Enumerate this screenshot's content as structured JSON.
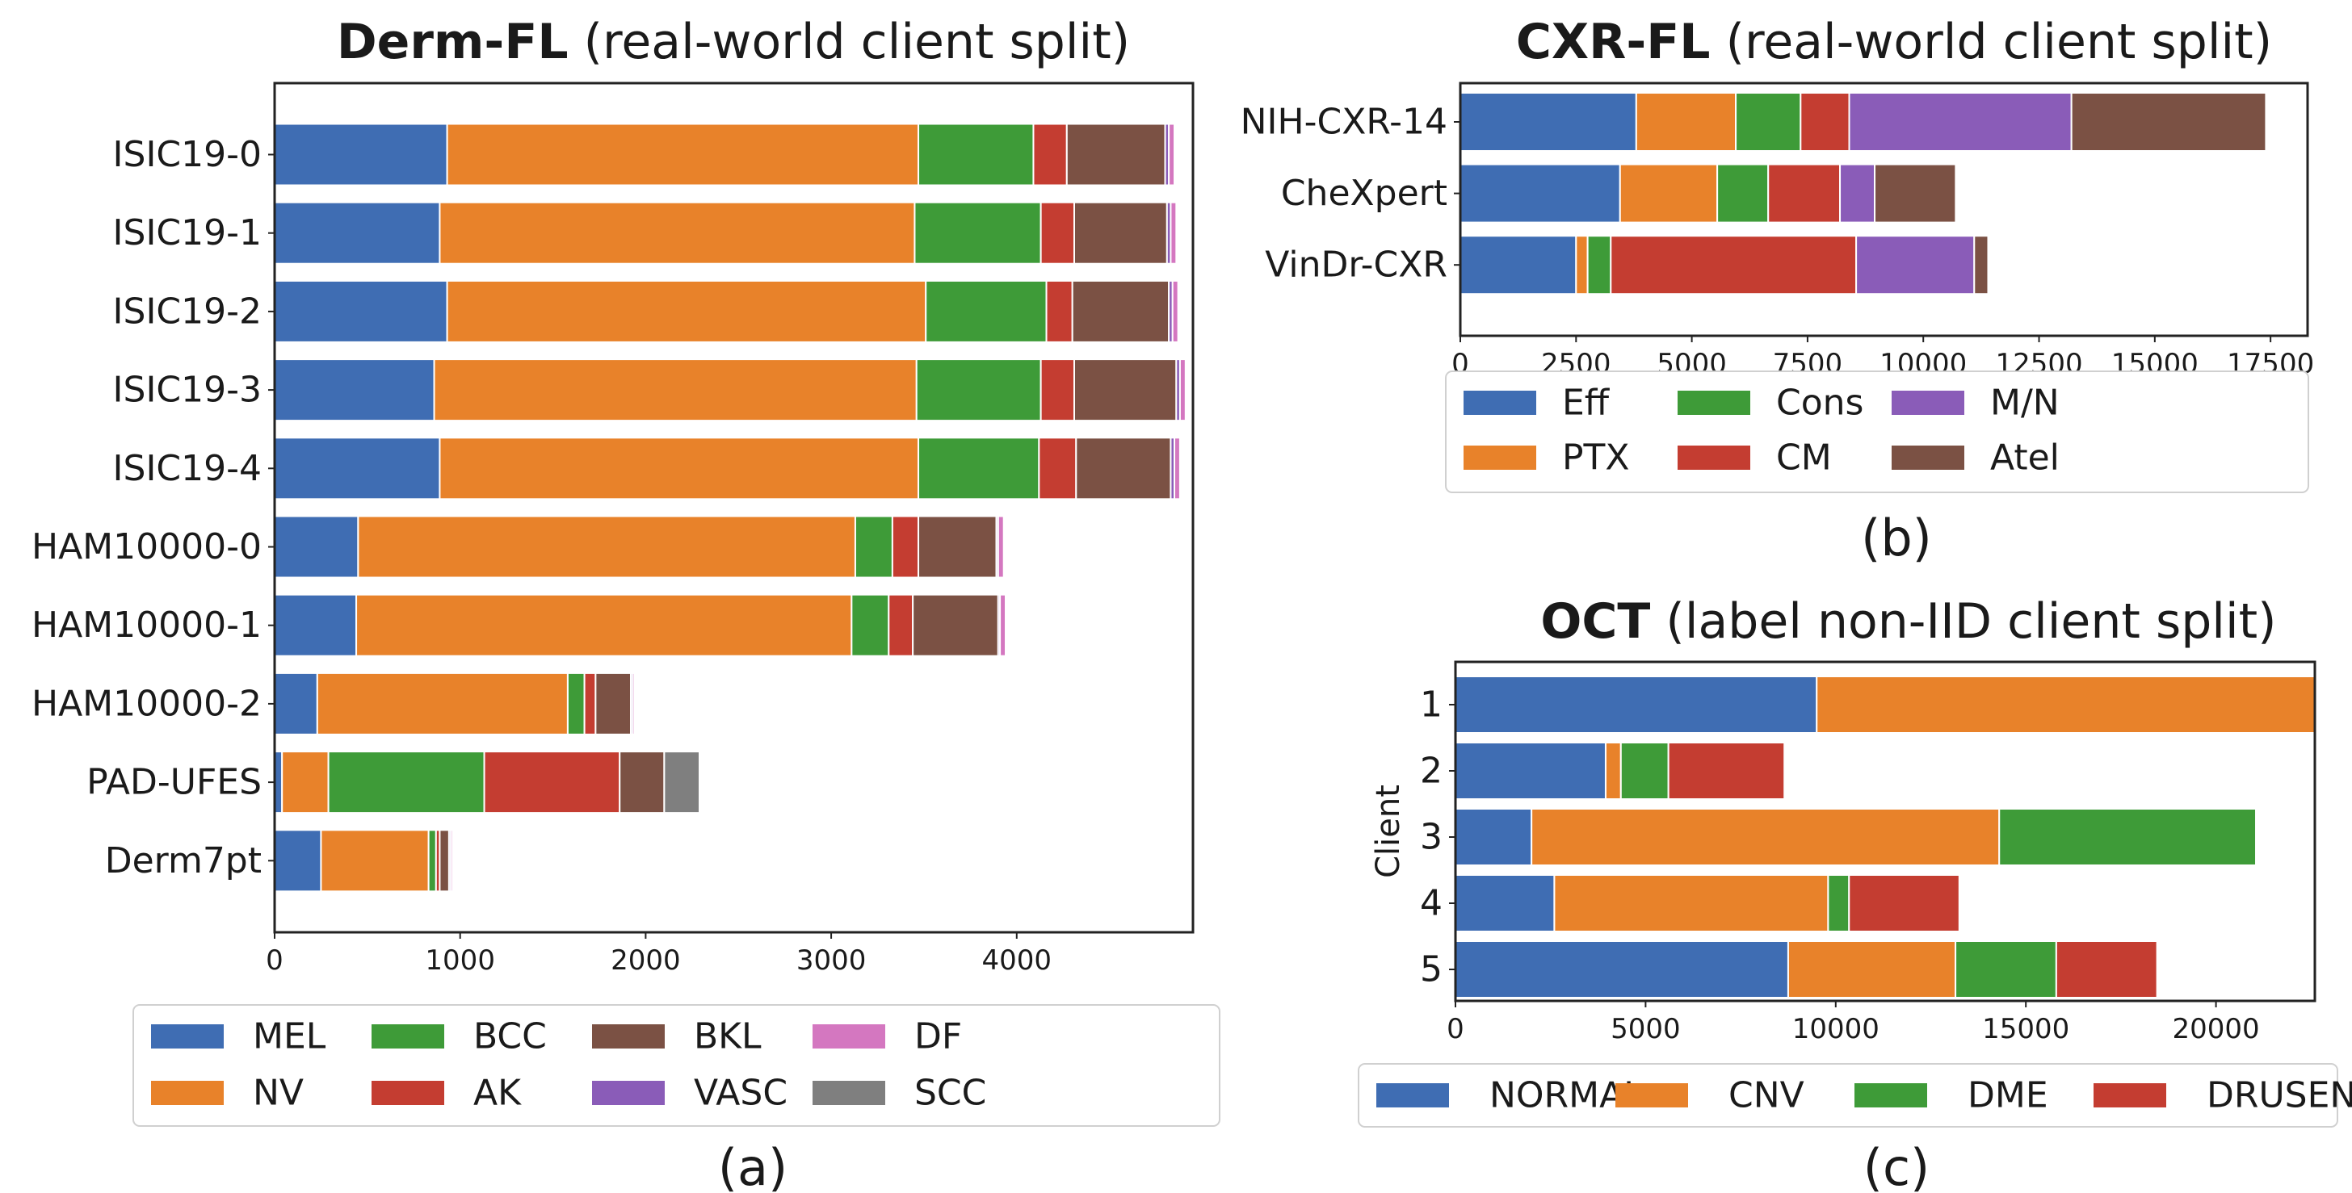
{
  "chart_data": [
    {
      "id": "a",
      "type": "bar",
      "orientation": "horizontal",
      "stacked": true,
      "title_bold": "Derm-FL",
      "title_rest": " (real-world client split)",
      "panel_label": "(a)",
      "ylabel": "",
      "categories": [
        "ISIC19-0",
        "ISIC19-1",
        "ISIC19-2",
        "ISIC19-3",
        "ISIC19-4",
        "HAM10000-0",
        "HAM10000-1",
        "HAM10000-2",
        "PAD-UFES",
        "Derm7pt"
      ],
      "xlim": [
        0,
        4950
      ],
      "xticks": [
        0,
        1000,
        2000,
        3000,
        4000
      ],
      "xtick_labels": [
        "0",
        "1000",
        "2000",
        "3000",
        "4000"
      ],
      "series": [
        {
          "name": "MEL",
          "color": "#3f6db3",
          "values": [
            930,
            890,
            930,
            860,
            890,
            450,
            440,
            230,
            40,
            250
          ]
        },
        {
          "name": "NV",
          "color": "#e8822a",
          "values": [
            2540,
            2560,
            2580,
            2600,
            2580,
            2680,
            2670,
            1350,
            250,
            580
          ]
        },
        {
          "name": "BCC",
          "color": "#3e9b38",
          "values": [
            620,
            680,
            650,
            670,
            650,
            200,
            200,
            90,
            840,
            40
          ]
        },
        {
          "name": "AK",
          "color": "#c43d31",
          "values": [
            180,
            180,
            140,
            180,
            200,
            140,
            130,
            60,
            730,
            20
          ]
        },
        {
          "name": "BKL",
          "color": "#7b5144",
          "values": [
            530,
            500,
            520,
            550,
            510,
            420,
            460,
            190,
            240,
            50
          ]
        },
        {
          "name": "VASC",
          "color": "#8a5cb8",
          "values": [
            20,
            20,
            20,
            20,
            20,
            10,
            10,
            10,
            0,
            10
          ]
        },
        {
          "name": "DF",
          "color": "#d477c0",
          "values": [
            30,
            30,
            30,
            30,
            30,
            30,
            30,
            10,
            0,
            10
          ]
        },
        {
          "name": "SCC",
          "color": "#7f7f7f",
          "values": [
            0,
            0,
            0,
            0,
            0,
            0,
            0,
            0,
            190,
            0
          ]
        }
      ],
      "legend_position": "bottom",
      "legend_cols": 5
    },
    {
      "id": "b",
      "type": "bar",
      "orientation": "horizontal",
      "stacked": true,
      "title_bold": "CXR-FL",
      "title_rest": " (real-world client split)",
      "panel_label": "(b)",
      "ylabel": "",
      "categories": [
        "NIH-CXR-14",
        "CheXpert",
        "VinDr-CXR"
      ],
      "xlim": [
        0,
        18300
      ],
      "xticks": [
        0,
        2500,
        5000,
        7500,
        10000,
        12500,
        15000,
        17500
      ],
      "xtick_labels": [
        "0",
        "2500",
        "5000",
        "7500",
        "10000",
        "12500",
        "15000",
        "17500"
      ],
      "series": [
        {
          "name": "Eff",
          "color": "#3f6db3",
          "values": [
            3800,
            3450,
            2500
          ]
        },
        {
          "name": "PTX",
          "color": "#e8822a",
          "values": [
            2150,
            2100,
            250
          ]
        },
        {
          "name": "Cons",
          "color": "#3e9b38",
          "values": [
            1400,
            1100,
            500
          ]
        },
        {
          "name": "CM",
          "color": "#c43d31",
          "values": [
            1050,
            1550,
            5300
          ]
        },
        {
          "name": "M/N",
          "color": "#8a5cb8",
          "values": [
            4800,
            750,
            2550
          ]
        },
        {
          "name": "Atel",
          "color": "#7b5144",
          "values": [
            4200,
            1750,
            300
          ]
        }
      ],
      "legend_position": "bottom",
      "legend_cols": 4
    },
    {
      "id": "c",
      "type": "bar",
      "orientation": "horizontal",
      "stacked": true,
      "title_bold": "OCT",
      "title_rest": " (label non-IID client split)",
      "panel_label": "(c)",
      "ylabel": "Client",
      "categories": [
        "1",
        "2",
        "3",
        "4",
        "5"
      ],
      "xlim": [
        0,
        22600
      ],
      "xticks": [
        0,
        5000,
        10000,
        15000,
        20000
      ],
      "xtick_labels": [
        "0",
        "5000",
        "10000",
        "15000",
        "20000"
      ],
      "series": [
        {
          "name": "NORMAL",
          "color": "#3f6db3",
          "values": [
            9500,
            3950,
            2000,
            2600,
            8750
          ]
        },
        {
          "name": "CNV",
          "color": "#e8822a",
          "values": [
            13100,
            400,
            12300,
            7200,
            4400
          ]
        },
        {
          "name": "DME",
          "color": "#3e9b38",
          "values": [
            0,
            1250,
            6750,
            550,
            2650
          ]
        },
        {
          "name": "DRUSEN",
          "color": "#c43d31",
          "values": [
            0,
            3050,
            0,
            2900,
            2650
          ]
        }
      ],
      "legend_position": "bottom",
      "legend_cols": 4
    }
  ]
}
